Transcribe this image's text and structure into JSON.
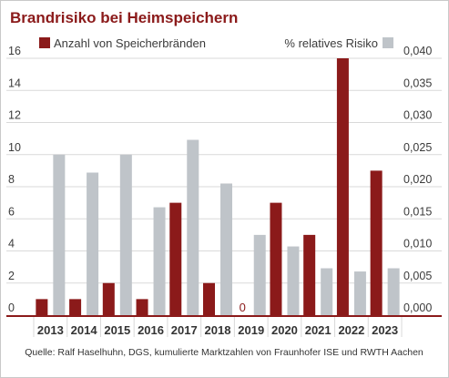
{
  "chart_data": {
    "type": "bar",
    "title": "Brandrisiko bei Heimspeichern",
    "categories": [
      "2013",
      "2014",
      "2015",
      "2016",
      "2017",
      "2018",
      "2019",
      "2020",
      "2021",
      "2022",
      "2023"
    ],
    "series": [
      {
        "name": "Anzahl von Speicherbränden",
        "axis": "left",
        "color": "#8b1a1a",
        "values": [
          1,
          1,
          2,
          1,
          7,
          2,
          0,
          7,
          5,
          16,
          9
        ]
      },
      {
        "name": "% relatives Risiko",
        "axis": "right",
        "color": "#bfc4c9",
        "values": [
          0.025,
          0.0222,
          0.025,
          0.0168,
          0.0273,
          0.0205,
          0.0125,
          0.0107,
          0.0073,
          0.0068,
          0.0073
        ]
      }
    ],
    "data_labels": [
      {
        "category": "2019",
        "text": "0"
      }
    ],
    "left_axis": {
      "ylim": [
        0,
        16
      ],
      "ticks": [
        "0",
        "2",
        "4",
        "6",
        "8",
        "10",
        "12",
        "14",
        "16"
      ]
    },
    "right_axis": {
      "ylim": [
        0,
        0.04
      ],
      "ticks": [
        "0,000",
        "0,005",
        "0,010",
        "0,015",
        "0,020",
        "0,025",
        "0,030",
        "0,035",
        "0,040"
      ]
    },
    "grid": true,
    "legend_position": "top",
    "source": "Quelle: Ralf Haselhuhn, DGS, kumulierte Marktzahlen von Fraunhofer ISE und RWTH Aachen"
  },
  "colors": {
    "title": "#8b1a1a",
    "primary_bar": "#8b1a1a",
    "secondary_bar": "#bfc4c9",
    "grid": "#d9d9d9",
    "axis": "#8b1a1a",
    "frame": "#c9c9c9"
  }
}
